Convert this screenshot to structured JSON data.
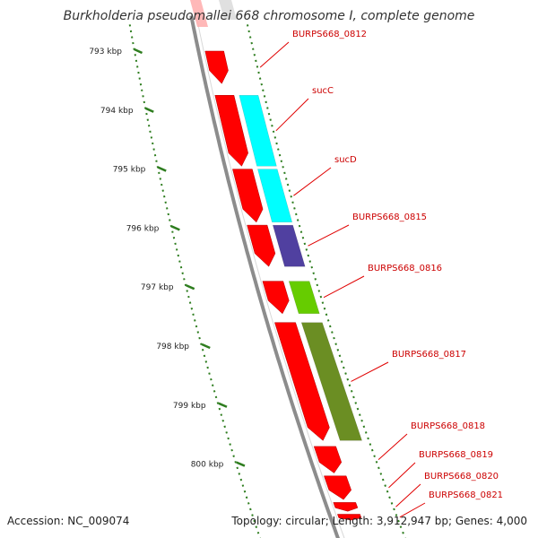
{
  "title": "Burkholderia pseudomallei 668 chromosome I, complete genome",
  "accession": "Accession: NC_009074",
  "summary": "Topology: circular; Length: 3,912,947 bp; Genes: 4,000",
  "colors": {
    "backbone": "#8c8c8c",
    "tick": "#2e7d1f",
    "label_line": "#e00000",
    "label_text": "#cc0000",
    "cds": "#ff0000",
    "cog_c": "#00ffff",
    "cog_j": "#5040a0",
    "cog_e": "#66cc00",
    "cog_m": "#6b8e23"
  },
  "ruler": {
    "unit": "kbp",
    "ticks": [
      {
        "kbp": 793,
        "label": "793 kbp"
      },
      {
        "kbp": 794,
        "label": "794 kbp"
      },
      {
        "kbp": 795,
        "label": "795 kbp"
      },
      {
        "kbp": 796,
        "label": "796 kbp"
      },
      {
        "kbp": 797,
        "label": "797 kbp"
      },
      {
        "kbp": 798,
        "label": "798 kbp"
      },
      {
        "kbp": 799,
        "label": "799 kbp"
      },
      {
        "kbp": 800,
        "label": "800 kbp"
      }
    ]
  },
  "genes": [
    {
      "label": "BURPS668_0812",
      "start": 793.0,
      "end": 793.55,
      "cog": null
    },
    {
      "label": "sucC",
      "start": 793.75,
      "end": 794.95,
      "cog": "cog_c"
    },
    {
      "label": "sucD",
      "start": 795.0,
      "end": 795.9,
      "cog": "cog_c"
    },
    {
      "label": "BURPS668_0815",
      "start": 795.95,
      "end": 796.65,
      "cog": "cog_j"
    },
    {
      "label": "BURPS668_0816",
      "start": 796.9,
      "end": 797.45,
      "cog": "cog_e"
    },
    {
      "label": "BURPS668_0817",
      "start": 797.6,
      "end": 799.6,
      "cog": "cog_m"
    },
    {
      "label": "BURPS668_0818",
      "start": 799.7,
      "end": 800.15,
      "cog": null
    },
    {
      "label": "BURPS668_0819",
      "start": 800.2,
      "end": 800.6,
      "cog": null
    },
    {
      "label": "BURPS668_0820",
      "start": 800.65,
      "end": 800.8,
      "cog": null
    },
    {
      "label": "BURPS668_0821",
      "start": 800.85,
      "end": 800.95,
      "cog": null
    }
  ]
}
